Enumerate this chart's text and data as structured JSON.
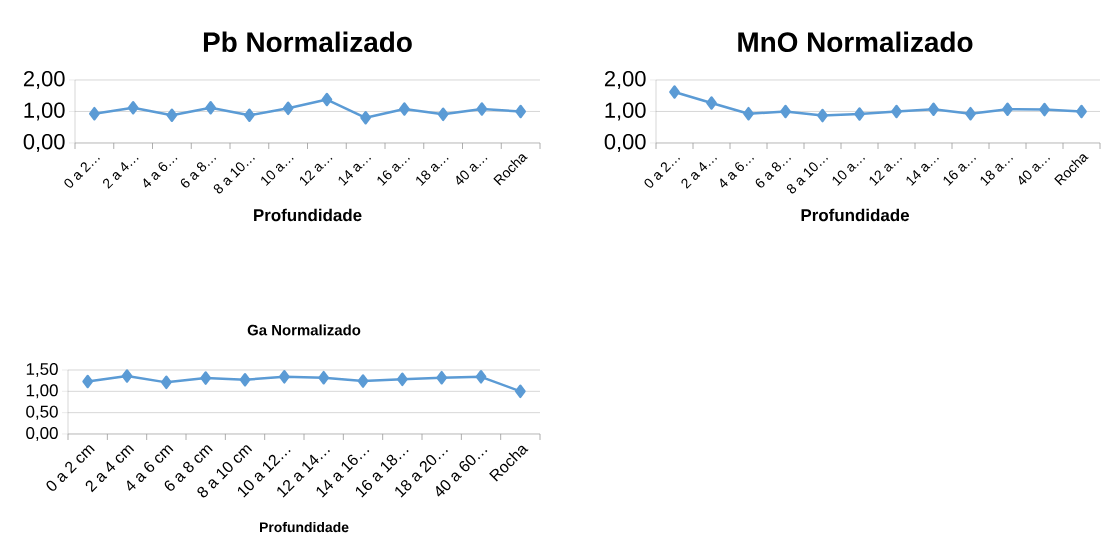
{
  "chart_data": [
    {
      "type": "line",
      "title": "Pb Normalizado",
      "xlabel": "Profundidade",
      "categories": [
        "0 a 2…",
        "2 a 4…",
        "4 a 6…",
        "6 a 8…",
        "8 a 10…",
        "10 a…",
        "12 a…",
        "14 a…",
        "16 a…",
        "18 a…",
        "40 a…",
        "Rocha"
      ],
      "series": [
        {
          "color": "#5b9bd5",
          "values": [
            0.93,
            1.12,
            0.88,
            1.12,
            0.88,
            1.1,
            1.38,
            0.8,
            1.08,
            0.91,
            1.08,
            1.0
          ]
        }
      ],
      "ylim": [
        0,
        2
      ],
      "yticks": [
        {
          "value": 0,
          "label": "0,00"
        },
        {
          "value": 1,
          "label": "1,00"
        },
        {
          "value": 2,
          "label": "2,00"
        }
      ],
      "grid": "y",
      "marker": "diamond"
    },
    {
      "type": "line",
      "title": "MnO Normalizado",
      "xlabel": "Profundidade",
      "categories": [
        "0 a 2…",
        "2 a 4…",
        "4 a 6…",
        "6 a 8…",
        "8 a 10…",
        "10 a…",
        "12 a…",
        "14 a…",
        "16 a…",
        "18 a…",
        "40 a…",
        "Rocha"
      ],
      "series": [
        {
          "color": "#5b9bd5",
          "values": [
            1.62,
            1.27,
            0.93,
            1.0,
            0.87,
            0.92,
            1.0,
            1.07,
            0.93,
            1.07,
            1.06,
            1.0
          ]
        }
      ],
      "ylim": [
        0,
        2
      ],
      "yticks": [
        {
          "value": 0,
          "label": "0,00"
        },
        {
          "value": 1,
          "label": "1,00"
        },
        {
          "value": 2,
          "label": "2,00"
        }
      ],
      "grid": "y",
      "marker": "diamond"
    },
    {
      "type": "line",
      "title": "Ga Normalizado",
      "xlabel": "Profundidade",
      "categories": [
        "0 a 2 cm",
        "2 a 4 cm",
        "4 a 6 cm",
        "6 a 8 cm",
        "8 a 10 cm",
        "10 a 12…",
        "12 a 14…",
        "14 a 16…",
        "16 a 18…",
        "18 a 20…",
        "40 a 60…",
        "Rocha"
      ],
      "series": [
        {
          "color": "#5b9bd5",
          "values": [
            1.23,
            1.36,
            1.21,
            1.31,
            1.27,
            1.34,
            1.32,
            1.24,
            1.28,
            1.32,
            1.34,
            1.0
          ]
        }
      ],
      "ylim": [
        0,
        1.5
      ],
      "yticks": [
        {
          "value": 0,
          "label": "0,00"
        },
        {
          "value": 0.5,
          "label": "0,50"
        },
        {
          "value": 1,
          "label": "1,00"
        },
        {
          "value": 1.5,
          "label": "1,50"
        }
      ],
      "grid": "y",
      "marker": "diamond"
    }
  ]
}
